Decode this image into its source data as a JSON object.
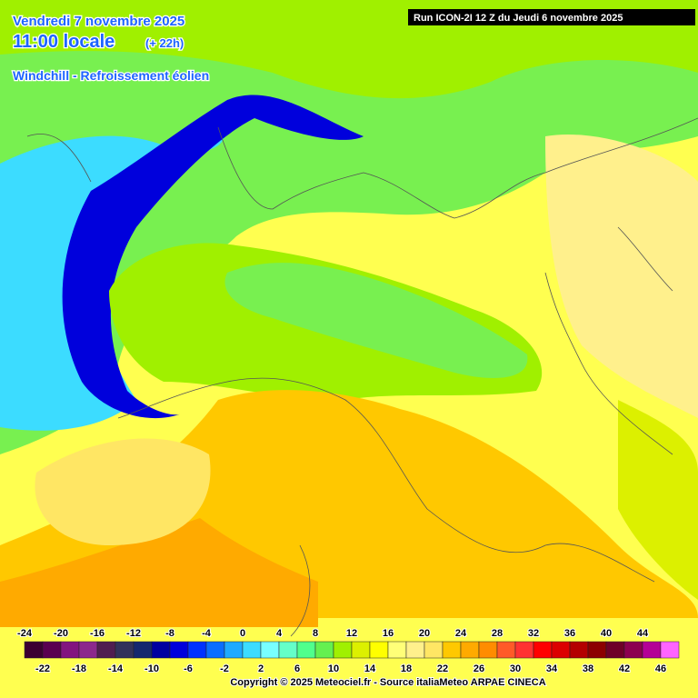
{
  "header": {
    "date": "Vendredi 7 novembre 2025",
    "time": "11:00 locale",
    "offset": "(+ 22h)",
    "parameter": "Windchill - Refroissement éolien",
    "run": "Run ICON-2I 12 Z du Jeudi 6 novembre 2025"
  },
  "legend": {
    "values": [
      -24,
      -22,
      -20,
      -18,
      -16,
      -14,
      -12,
      -10,
      -8,
      -6,
      -4,
      -2,
      0,
      2,
      4,
      6,
      8,
      10,
      12,
      14,
      16,
      18,
      20,
      22,
      24,
      26,
      28,
      30,
      32,
      34,
      36,
      38,
      40,
      42,
      44,
      46
    ],
    "colors": [
      "#3c0032",
      "#5a0050",
      "#82147f",
      "#8c288c",
      "#501e50",
      "#32325a",
      "#14286e",
      "#0000a0",
      "#0000dc",
      "#0032ff",
      "#0a6eff",
      "#1eaaff",
      "#3cdcff",
      "#78ffff",
      "#64ffc8",
      "#50ff8c",
      "#64f050",
      "#a0f000",
      "#dcf000",
      "#ffff00",
      "#ffff78",
      "#fff08c",
      "#ffe664",
      "#ffc800",
      "#ffaa00",
      "#ff8c00",
      "#ff5a28",
      "#ff3232",
      "#ff0000",
      "#dc0000",
      "#b40000",
      "#8c0000",
      "#6e0028",
      "#8c0050",
      "#b40096",
      "#ff64ff"
    ]
  },
  "footer": {
    "copyright": "Copyright © 2025 Meteociel.fr - Source italiaMeteo ARPAE CINECA"
  }
}
